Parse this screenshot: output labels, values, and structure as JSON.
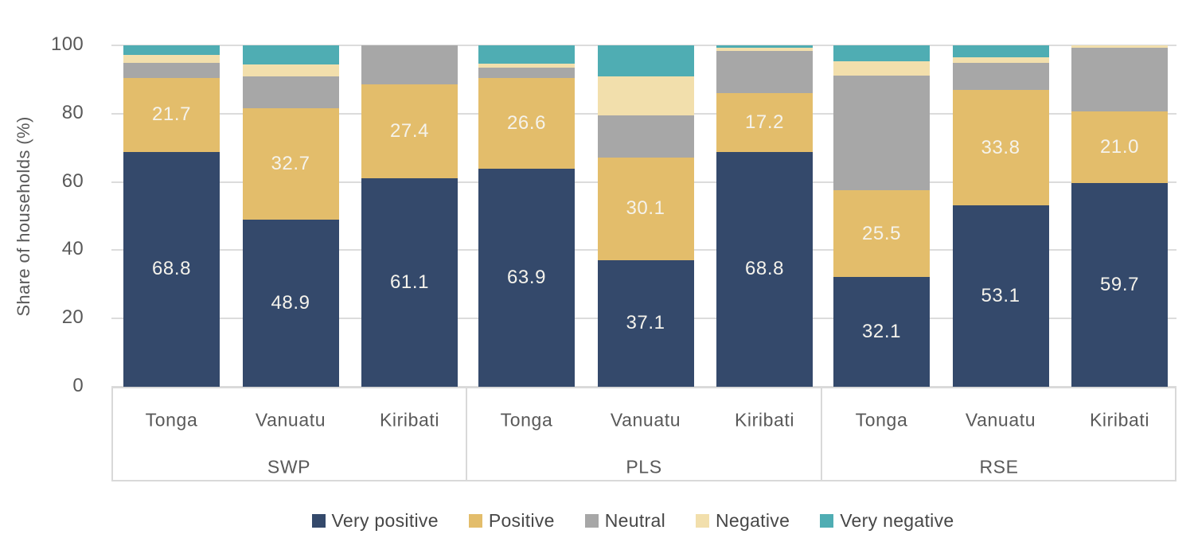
{
  "chart_data": {
    "type": "bar",
    "stacked": true,
    "orientation": "vertical",
    "title": "",
    "xlabel": "",
    "ylabel": "Share of households (%)",
    "ylim": [
      0,
      100
    ],
    "y_ticks": [
      0,
      20,
      40,
      60,
      80,
      100
    ],
    "grid": true,
    "legend_position": "bottom",
    "groups": [
      {
        "label": "SWP",
        "categories": [
          "Tonga",
          "Vanuatu",
          "Kiribati"
        ]
      },
      {
        "label": "PLS",
        "categories": [
          "Tonga",
          "Vanuatu",
          "Kiribati"
        ]
      },
      {
        "label": "RSE",
        "categories": [
          "Tonga",
          "Vanuatu",
          "Kiribati"
        ]
      }
    ],
    "bar_order": [
      "SWP-Tonga",
      "SWP-Vanuatu",
      "SWP-Kiribati",
      "PLS-Tonga",
      "PLS-Vanuatu",
      "PLS-Kiribati",
      "RSE-Tonga",
      "RSE-Vanuatu",
      "RSE-Kiribati"
    ],
    "series": [
      {
        "name": "Very positive",
        "color": "#34496B",
        "show_labels": true,
        "values": [
          68.8,
          48.9,
          61.1,
          63.9,
          37.1,
          68.8,
          32.1,
          53.1,
          59.7
        ]
      },
      {
        "name": "Positive",
        "color": "#E3BD6B",
        "show_labels": true,
        "values": [
          21.7,
          32.7,
          27.4,
          26.6,
          30.1,
          17.2,
          25.5,
          33.8,
          21.0
        ]
      },
      {
        "name": "Neutral",
        "color": "#A7A7A7",
        "show_labels": false,
        "values": [
          4.4,
          9.4,
          11.5,
          2.9,
          12.3,
          12.3,
          33.6,
          8.0,
          18.5
        ]
      },
      {
        "name": "Negative",
        "color": "#F2DFAC",
        "show_labels": false,
        "values": [
          2.4,
          3.5,
          0.0,
          1.3,
          11.4,
          1.0,
          4.2,
          1.5,
          0.8
        ]
      },
      {
        "name": "Very negative",
        "color": "#4FADB3",
        "show_labels": false,
        "values": [
          2.7,
          5.5,
          0.0,
          5.3,
          9.1,
          0.7,
          4.6,
          3.6,
          0.0
        ]
      }
    ]
  },
  "legend": {
    "items": [
      {
        "label": "Very positive",
        "color": "#34496B"
      },
      {
        "label": "Positive",
        "color": "#E3BD6B"
      },
      {
        "label": "Neutral",
        "color": "#A7A7A7"
      },
      {
        "label": "Negative",
        "color": "#F2DFAC"
      },
      {
        "label": "Very negative",
        "color": "#4FADB3"
      }
    ]
  },
  "colors": {
    "gridline": "#DCDCDC",
    "axis_box_border": "#D9D9D9",
    "axis_text": "#595959",
    "legend_text": "#474747",
    "bar_value_text": "#F5F3EC",
    "background": "#FFFFFF"
  }
}
